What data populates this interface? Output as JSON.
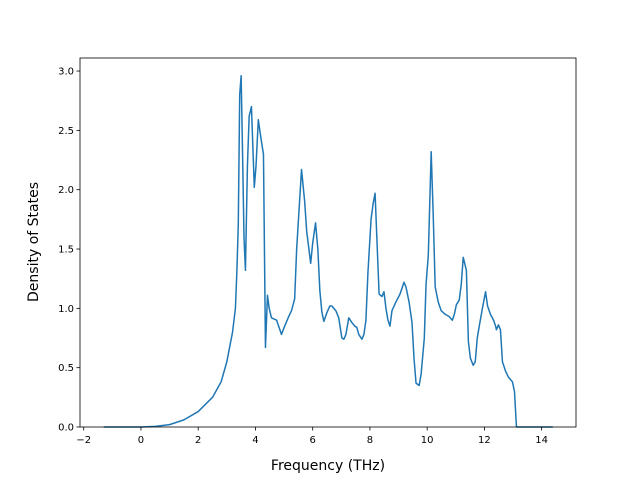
{
  "chart_data": {
    "type": "line",
    "xlabel": "Frequency (THz)",
    "ylabel": "Density of States",
    "x": [
      -1.3,
      0,
      0.5,
      1,
      1.5,
      2,
      2.5,
      2.8,
      3.0,
      3.2,
      3.3,
      3.35,
      3.4,
      3.45,
      3.5,
      3.55,
      3.6,
      3.65,
      3.72,
      3.78,
      3.86,
      3.96,
      4.02,
      4.1,
      4.2,
      4.28,
      4.35,
      4.42,
      4.48,
      4.56,
      4.74,
      4.91,
      5.02,
      5.16,
      5.26,
      5.37,
      5.44,
      5.61,
      5.72,
      5.79,
      5.93,
      6.0,
      6.1,
      6.18,
      6.25,
      6.32,
      6.39,
      6.49,
      6.6,
      6.67,
      6.81,
      6.91,
      7.02,
      7.09,
      7.16,
      7.26,
      7.37,
      7.47,
      7.54,
      7.61,
      7.72,
      7.79,
      7.86,
      7.93,
      8.04,
      8.11,
      8.18,
      8.32,
      8.42,
      8.49,
      8.56,
      8.63,
      8.7,
      8.77,
      8.9,
      9.05,
      9.19,
      9.26,
      9.37,
      9.47,
      9.54,
      9.61,
      9.72,
      9.79,
      9.9,
      9.96,
      10.04,
      10.14,
      10.21,
      10.28,
      10.39,
      10.49,
      10.63,
      10.77,
      10.88,
      10.95,
      11.02,
      11.12,
      11.19,
      11.26,
      11.37,
      11.44,
      11.51,
      11.61,
      11.68,
      11.75,
      11.82,
      11.93,
      12.04,
      12.11,
      12.21,
      12.32,
      12.39,
      12.42,
      12.49,
      12.56,
      12.63,
      12.74,
      12.84,
      12.98,
      13.05,
      13.12,
      14.39
    ],
    "values": [
      0,
      0,
      0.005,
      0.02,
      0.06,
      0.13,
      0.25,
      0.38,
      0.55,
      0.8,
      1.0,
      1.3,
      1.7,
      2.8,
      2.96,
      2.3,
      1.6,
      1.32,
      2.2,
      2.62,
      2.7,
      2.02,
      2.2,
      2.59,
      2.42,
      2.3,
      0.67,
      1.11,
      1.0,
      0.92,
      0.9,
      0.78,
      0.85,
      0.93,
      0.98,
      1.08,
      1.5,
      2.17,
      1.9,
      1.65,
      1.38,
      1.55,
      1.72,
      1.5,
      1.15,
      0.97,
      0.89,
      0.96,
      1.02,
      1.02,
      0.98,
      0.92,
      0.75,
      0.74,
      0.78,
      0.92,
      0.88,
      0.85,
      0.84,
      0.78,
      0.74,
      0.78,
      0.9,
      1.3,
      1.75,
      1.88,
      1.97,
      1.12,
      1.1,
      1.14,
      1.0,
      0.9,
      0.85,
      0.98,
      1.05,
      1.12,
      1.22,
      1.18,
      1.05,
      0.88,
      0.58,
      0.37,
      0.35,
      0.45,
      0.75,
      1.2,
      1.45,
      2.32,
      1.8,
      1.18,
      1.05,
      0.98,
      0.95,
      0.93,
      0.9,
      0.95,
      1.03,
      1.07,
      1.2,
      1.43,
      1.32,
      0.72,
      0.58,
      0.52,
      0.55,
      0.75,
      0.85,
      1.0,
      1.14,
      1.02,
      0.95,
      0.9,
      0.85,
      0.82,
      0.86,
      0.82,
      0.55,
      0.47,
      0.42,
      0.38,
      0.3,
      0,
      0
    ],
    "color": "#1f77b4",
    "xlim": [
      -2.13,
      15.2
    ],
    "ylim": [
      0,
      3.11
    ],
    "xticks": [
      {
        "value": -2,
        "label": "−2"
      },
      0,
      2,
      4,
      6,
      8,
      10,
      12,
      14
    ],
    "yticks": [
      {
        "value": 0,
        "label": "0.0"
      },
      {
        "value": 0.5,
        "label": "0.5"
      },
      {
        "value": 1,
        "label": "1.0"
      },
      {
        "value": 1.5,
        "label": "1.5"
      },
      {
        "value": 2,
        "label": "2.0"
      },
      {
        "value": 2.5,
        "label": "2.5"
      },
      {
        "value": 3,
        "label": "3.0"
      }
    ]
  }
}
